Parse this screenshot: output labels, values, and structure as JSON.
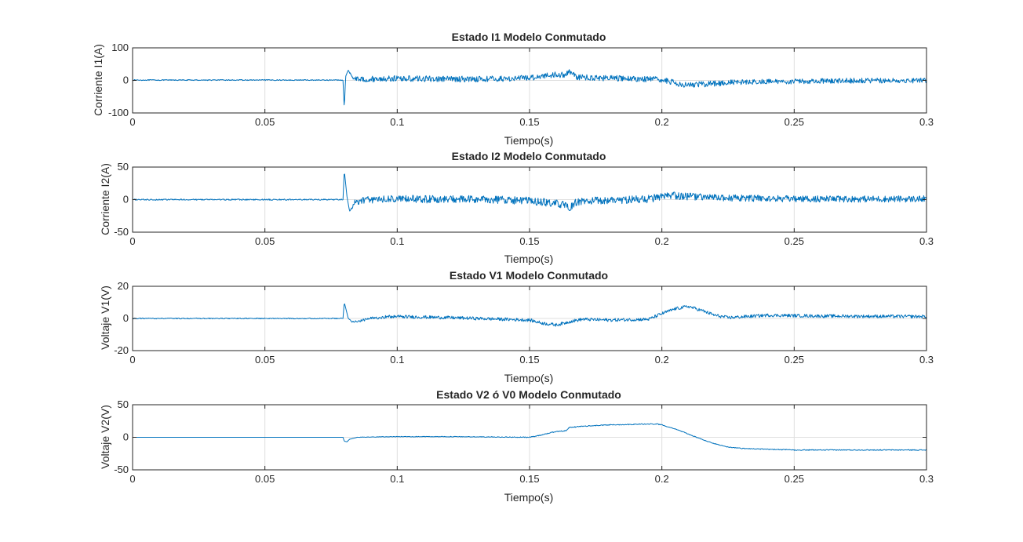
{
  "figure": {
    "line_color": "#0072BD",
    "grid_color": "#dfdfdf",
    "axis_color": "#262626"
  },
  "chart_data": [
    {
      "type": "line",
      "title": "Estado I1 Modelo Conmutado",
      "xlabel": "Tiempo(s)",
      "ylabel": "Corriente I1(A)",
      "xlim": [
        0,
        0.3
      ],
      "ylim": [
        -100,
        100
      ],
      "xticks": [
        0,
        0.05,
        0.1,
        0.15,
        0.2,
        0.25,
        0.3
      ],
      "xtick_labels": [
        "0",
        "0.05",
        "0.1",
        "0.15",
        "0.2",
        "0.25",
        "0.3"
      ],
      "yticks": [
        -100,
        0,
        100
      ],
      "ytick_labels": [
        "-100",
        "0",
        "100"
      ],
      "grid": true,
      "series": [
        {
          "x": [
            0,
            0.0795,
            0.08,
            0.0805,
            0.0815,
            0.083,
            0.086,
            0.09,
            0.1,
            0.12,
            0.14,
            0.15,
            0.155,
            0.16,
            0.163,
            0.165,
            0.168,
            0.175,
            0.19,
            0.2,
            0.205,
            0.21,
            0.215,
            0.22,
            0.23,
            0.25,
            0.27,
            0.3
          ],
          "y": [
            1,
            1,
            -88,
            12,
            32,
            10,
            3,
            4,
            6,
            4,
            5,
            8,
            14,
            18,
            16,
            28,
            10,
            8,
            5,
            2,
            -8,
            -14,
            -12,
            -9,
            -5,
            -3,
            -1,
            0
          ],
          "noise": [
            1.5,
            1.5,
            0,
            0,
            0,
            6,
            8,
            9,
            9,
            9,
            9,
            9,
            9,
            9,
            9,
            9,
            9,
            9,
            9,
            9,
            9,
            9,
            9,
            9,
            8,
            8,
            8,
            8
          ]
        }
      ]
    },
    {
      "type": "line",
      "title": "Estado I2 Modelo Conmutado",
      "xlabel": "Tiempo(s)",
      "ylabel": "Corriente I2(A)",
      "xlim": [
        0,
        0.3
      ],
      "ylim": [
        -50,
        50
      ],
      "xticks": [
        0,
        0.05,
        0.1,
        0.15,
        0.2,
        0.25,
        0.3
      ],
      "xtick_labels": [
        "0",
        "0.05",
        "0.1",
        "0.15",
        "0.2",
        "0.25",
        "0.3"
      ],
      "yticks": [
        -50,
        0,
        50
      ],
      "ytick_labels": [
        "-50",
        "0",
        "50"
      ],
      "grid": true,
      "series": [
        {
          "x": [
            0,
            0.0795,
            0.08,
            0.081,
            0.082,
            0.084,
            0.088,
            0.1,
            0.14,
            0.15,
            0.155,
            0.16,
            0.163,
            0.165,
            0.168,
            0.18,
            0.195,
            0.2,
            0.205,
            0.21,
            0.22,
            0.25,
            0.3
          ],
          "y": [
            0,
            0,
            45,
            5,
            -18,
            -5,
            0,
            1,
            0,
            -2,
            -4,
            -6,
            -8,
            -14,
            -3,
            -1,
            1,
            4,
            6,
            5,
            3,
            1,
            1
          ],
          "noise": [
            1,
            1,
            0,
            0,
            0,
            5,
            6,
            6,
            6,
            6,
            6,
            6,
            6,
            6,
            6,
            6,
            6,
            6,
            6,
            6,
            5,
            5,
            5
          ]
        }
      ]
    },
    {
      "type": "line",
      "title": "Estado V1 Modelo Conmutado",
      "xlabel": "Tiempo(s)",
      "ylabel": "Voltaje V1(V)",
      "xlim": [
        0,
        0.3
      ],
      "ylim": [
        -20,
        20
      ],
      "xticks": [
        0,
        0.05,
        0.1,
        0.15,
        0.2,
        0.25,
        0.3
      ],
      "xtick_labels": [
        "0",
        "0.05",
        "0.1",
        "0.15",
        "0.2",
        "0.25",
        "0.3"
      ],
      "yticks": [
        -20,
        0,
        20
      ],
      "ytick_labels": [
        "-20",
        "0",
        "20"
      ],
      "grid": true,
      "series": [
        {
          "x": [
            0,
            0.0795,
            0.08,
            0.0815,
            0.083,
            0.086,
            0.09,
            0.095,
            0.1,
            0.12,
            0.15,
            0.155,
            0.16,
            0.163,
            0.165,
            0.17,
            0.18,
            0.195,
            0.2,
            0.205,
            0.21,
            0.215,
            0.22,
            0.225,
            0.23,
            0.24,
            0.26,
            0.3
          ],
          "y": [
            0,
            0,
            10,
            0,
            -2,
            -1.5,
            0,
            1,
            1.2,
            0.5,
            -1,
            -3,
            -4,
            -3,
            -2,
            -0.5,
            -1,
            -0.5,
            3,
            6,
            7.5,
            5,
            2,
            0.5,
            1,
            2,
            1.5,
            1.2
          ],
          "noise": [
            0.3,
            0.3,
            0,
            0,
            0.5,
            0.7,
            0.9,
            1,
            1,
            1,
            1,
            1,
            1,
            1,
            1,
            1,
            1,
            1,
            1,
            1,
            1,
            1,
            1,
            1,
            1,
            1,
            1,
            1
          ]
        }
      ]
    },
    {
      "type": "line",
      "title": "Estado V2 ó V0 Modelo Conmutado",
      "xlabel": "Tiempo(s)",
      "ylabel": "Voltaje V2(V)",
      "xlim": [
        0,
        0.3
      ],
      "ylim": [
        -50,
        50
      ],
      "xticks": [
        0,
        0.05,
        0.1,
        0.15,
        0.2,
        0.25,
        0.3
      ],
      "xtick_labels": [
        "0",
        "0.05",
        "0.1",
        "0.15",
        "0.2",
        "0.25",
        "0.3"
      ],
      "yticks": [
        -50,
        0,
        50
      ],
      "ytick_labels": [
        "-50",
        "0",
        "50"
      ],
      "grid": true,
      "series": [
        {
          "x": [
            0,
            0.0795,
            0.08,
            0.081,
            0.082,
            0.085,
            0.1,
            0.12,
            0.15,
            0.155,
            0.16,
            0.164,
            0.165,
            0.17,
            0.18,
            0.19,
            0.198,
            0.2,
            0.205,
            0.21,
            0.215,
            0.22,
            0.225,
            0.23,
            0.24,
            0.25,
            0.27,
            0.3
          ],
          "y": [
            0,
            0,
            -6,
            -7,
            -3,
            0,
            1,
            1,
            0,
            4,
            9,
            10,
            15,
            17,
            19,
            20,
            20.5,
            19,
            13,
            5,
            -3,
            -10,
            -15,
            -17,
            -18.5,
            -19.5,
            -19.5,
            -19.5
          ],
          "noise": [
            0,
            0,
            0,
            0,
            0,
            0.3,
            0.5,
            0.5,
            0.6,
            0.7,
            0.7,
            0.7,
            0.7,
            0.7,
            0.7,
            0.7,
            0.7,
            0.6,
            0.5,
            0.5,
            0.5,
            0.5,
            0.5,
            0.6,
            0.7,
            0.7,
            0.7,
            0.7
          ]
        }
      ]
    }
  ]
}
